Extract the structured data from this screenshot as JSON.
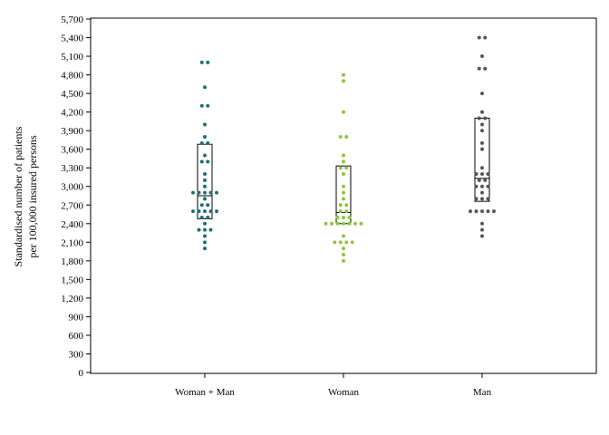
{
  "colors": {
    "woman_man": "#1f6f73",
    "woman": "#8cc63f",
    "man": "#555555",
    "axis": "#000000",
    "box": "#000000"
  },
  "chart_data": {
    "type": "scatter",
    "title": "",
    "ylabel_lines": [
      "Standardised number of patients",
      "per 100,000 insured persons"
    ],
    "xlabel": "",
    "ylim": [
      0,
      5700
    ],
    "yticks": [
      0,
      300,
      600,
      900,
      1200,
      1500,
      1800,
      2100,
      2400,
      2700,
      3000,
      3300,
      3600,
      3900,
      4200,
      4500,
      4800,
      5100,
      5400,
      5700
    ],
    "ytick_labels": [
      "0",
      "300",
      "600",
      "900",
      "1,200",
      "1,500",
      "1,800",
      "2,100",
      "2,400",
      "2,700",
      "3,000",
      "3,300",
      "3,600",
      "3,900",
      "4,200",
      "4,500",
      "4,800",
      "5,100",
      "5,400",
      "5,700"
    ],
    "grid": false,
    "categories": [
      "Woman + Man",
      "Woman",
      "Man"
    ],
    "series": [
      {
        "category": "Woman + Man",
        "color_key": "woman_man",
        "box": {
          "q1": 2480,
          "median": 2850,
          "q3": 3680
        },
        "points": [
          5000,
          5000,
          4600,
          4300,
          4300,
          4000,
          3800,
          3700,
          3700,
          3500,
          3400,
          3400,
          3200,
          3100,
          3000,
          2900,
          2900,
          2900,
          2900,
          2900,
          2800,
          2700,
          2700,
          2600,
          2600,
          2600,
          2600,
          2600,
          2500,
          2500,
          2400,
          2300,
          2300,
          2300,
          2200,
          2100,
          2000
        ]
      },
      {
        "category": "Woman",
        "color_key": "woman",
        "box": {
          "q1": 2400,
          "median": 2580,
          "q3": 3330
        },
        "points": [
          4800,
          4700,
          4200,
          3800,
          3800,
          3500,
          3400,
          3300,
          3300,
          3200,
          3000,
          2900,
          2800,
          2700,
          2700,
          2600,
          2600,
          2500,
          2500,
          2500,
          2400,
          2400,
          2400,
          2400,
          2400,
          2400,
          2400,
          2200,
          2100,
          2100,
          2100,
          2100,
          2000,
          1900,
          1800
        ]
      },
      {
        "category": "Man",
        "color_key": "man",
        "box": {
          "q1": 2760,
          "median": 3130,
          "q3": 4100
        },
        "points": [
          5400,
          5400,
          5100,
          4900,
          4900,
          4500,
          4200,
          4100,
          4100,
          4000,
          3900,
          3700,
          3600,
          3300,
          3200,
          3200,
          3200,
          3100,
          3100,
          3000,
          3000,
          3000,
          2900,
          2800,
          2800,
          2800,
          2600,
          2600,
          2600,
          2600,
          2600,
          2400,
          2300,
          2200
        ]
      }
    ]
  }
}
